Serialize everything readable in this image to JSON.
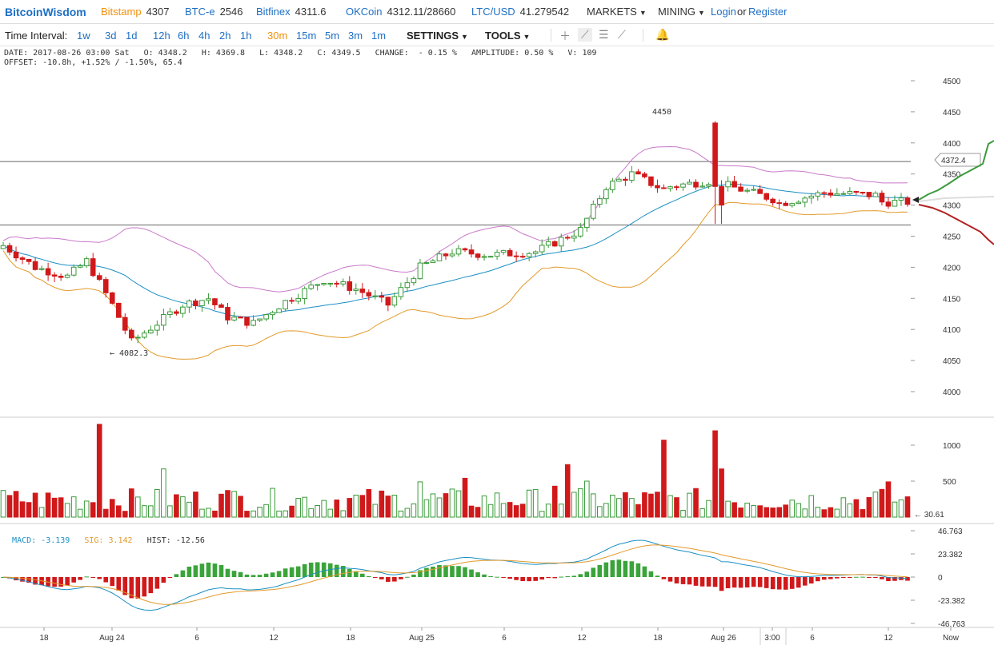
{
  "nav": {
    "logo": "BitcoinWisdom",
    "exchanges": [
      {
        "name": "Bitstamp",
        "price": "4307",
        "color": "#f0900b"
      },
      {
        "name": "BTC-e",
        "price": "2546",
        "color": "#1e6fc4"
      },
      {
        "name": "Bitfinex",
        "price": "4311.6",
        "color": "#1e6fc4"
      },
      {
        "name": "OKCoin",
        "price": "4312.11/28660",
        "color": "#1e6fc4"
      },
      {
        "name": "LTC/USD",
        "price": "41.279542",
        "color": "#1e6fc4"
      }
    ],
    "markets": "MARKETS",
    "mining": "MINING",
    "login": "Login",
    "or": "or",
    "register": "Register"
  },
  "toolbar": {
    "time_interval_label": "Time Interval:",
    "intervals": [
      "1w",
      "3d",
      "1d",
      "12h",
      "6h",
      "4h",
      "2h",
      "1h",
      "30m",
      "15m",
      "5m",
      "3m",
      "1m"
    ],
    "active_interval": "30m",
    "settings": "SETTINGS",
    "tools": "TOOLS"
  },
  "info": {
    "line1": "DATE: 2017-08-26 03:00 Sat   O: 4348.2   H: 4369.8   L: 4348.2   C: 4349.5   CHANGE:  - 0.15 %   AMPLITUDE: 0.50 %   V: 109",
    "line2": "OFFSET: -10.8h, +1.52% / -1.50%, 65.4"
  },
  "chart_data": {
    "type": "candlestick",
    "price_axis": {
      "ticks": [
        4000,
        4050,
        4100,
        4150,
        4200,
        4250,
        4300,
        4350,
        4400,
        4450,
        4500
      ],
      "range": [
        3985,
        4520
      ]
    },
    "current_price_label": "4372.4",
    "annotations": {
      "high": "4450",
      "low": "4082.3"
    },
    "horizontal_lines": [
      4370,
      4268
    ],
    "volume_axis": {
      "ticks": [
        500,
        1000
      ]
    },
    "last_volume_label": "30.61",
    "macd": {
      "macd_label": "MACD: -3.139",
      "sig_label": "SIG: 3.142",
      "hist_label": "HIST: -12.56",
      "axis_ticks": [
        "46.763",
        "23.382",
        "0",
        "-23.382",
        "-46.763"
      ]
    },
    "time_axis": [
      "18",
      "Aug 24",
      "6",
      "12",
      "18",
      "Aug 25",
      "6",
      "12",
      "18",
      "Aug 26",
      "3:00",
      "6",
      "12",
      "Now"
    ],
    "colors": {
      "up": "#3a9a3a",
      "down": "#d0191b",
      "ma": "#1a8fc4",
      "boll_upper": "#c97ac9",
      "boll_lower": "#e39a2b"
    }
  }
}
